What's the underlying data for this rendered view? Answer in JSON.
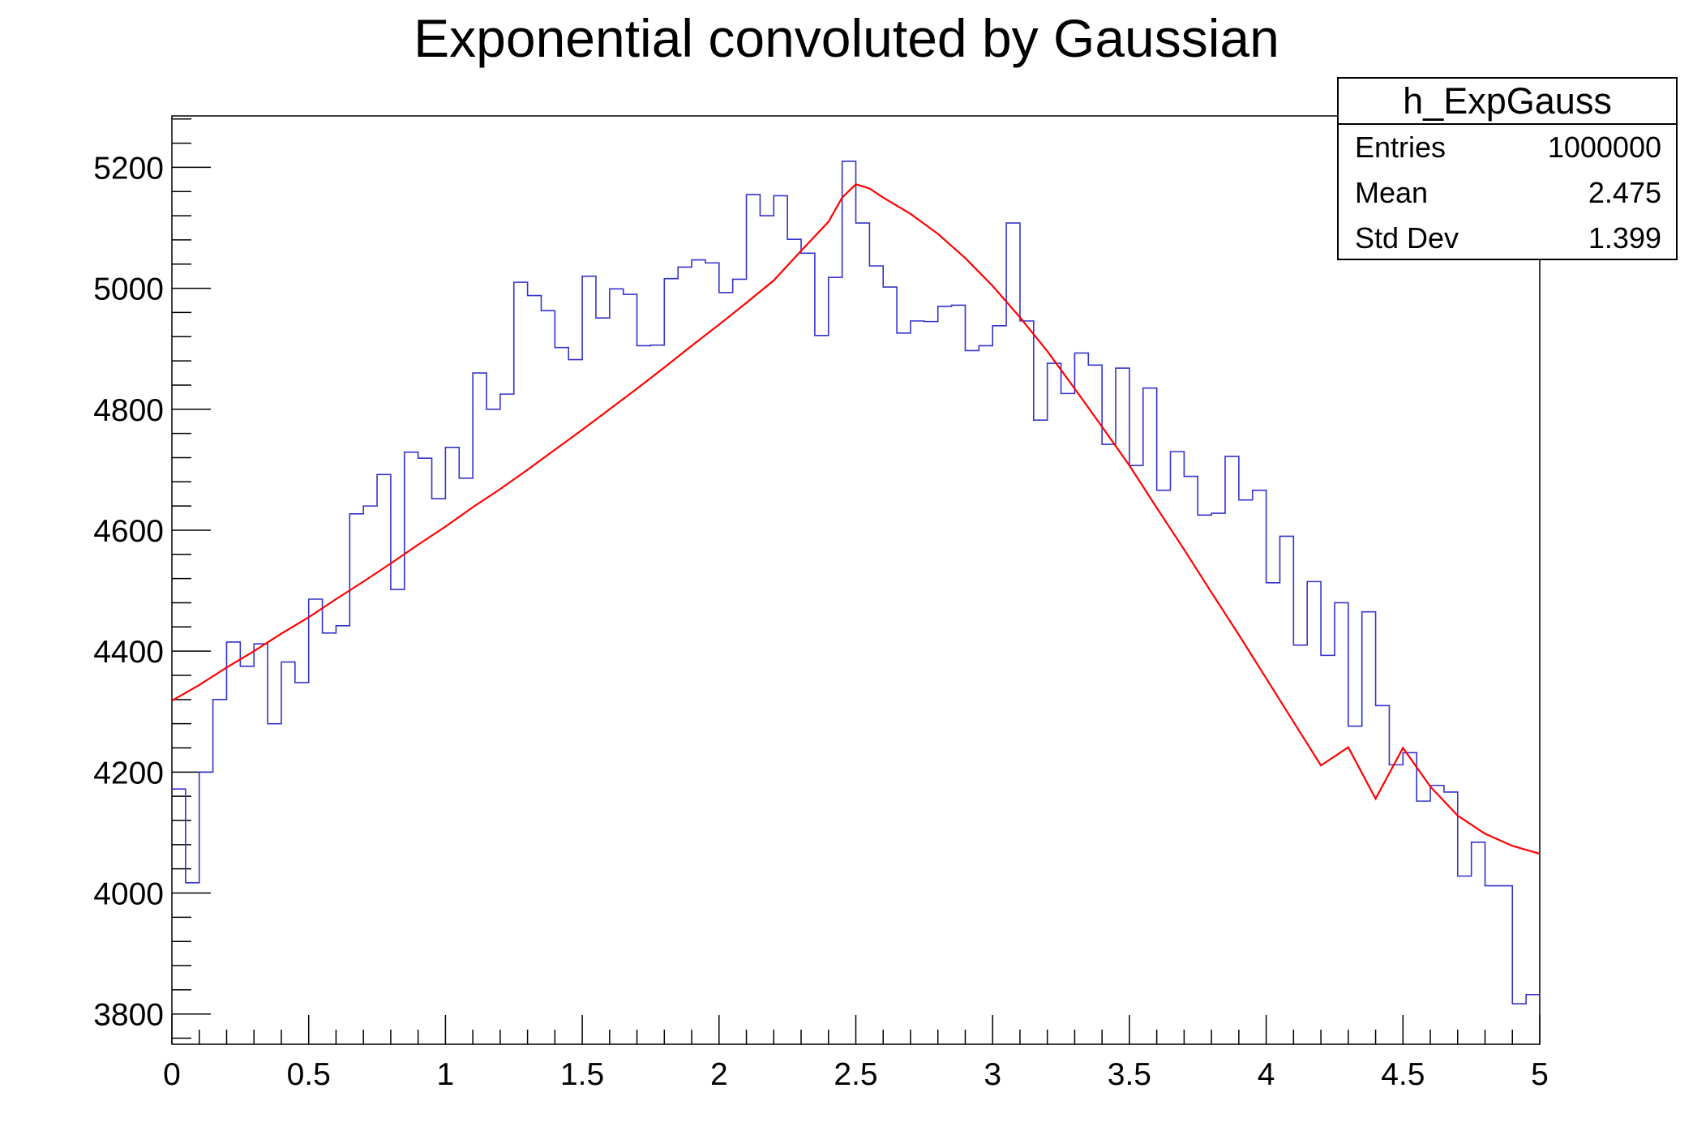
{
  "chart_data": {
    "type": "histogram",
    "title": "Exponential convoluted by Gaussian",
    "xlabel": "",
    "ylabel": "",
    "xlim": [
      0,
      5
    ],
    "ylim": [
      3750,
      5285
    ],
    "x_ticks": [
      "0",
      "0.5",
      "1",
      "1.5",
      "2",
      "2.5",
      "3",
      "3.5",
      "4",
      "4.5",
      "5"
    ],
    "y_ticks": [
      "3800",
      "4000",
      "4200",
      "4400",
      "4600",
      "4800",
      "5000",
      "5200"
    ],
    "grid": false,
    "histogram": {
      "name": "h_ExpGauss",
      "color": "#3333cc",
      "bin_edges_range": [
        0,
        5
      ],
      "n_bins": 100,
      "values": [
        4172,
        4017,
        4200,
        4320,
        4415,
        4375,
        4412,
        4280,
        4382,
        4348,
        4486,
        4430,
        4442,
        4627,
        4640,
        4692,
        4502,
        4729,
        4719,
        4652,
        4737,
        4686,
        4860,
        4800,
        4825,
        5010,
        4988,
        4963,
        4902,
        4882,
        5020,
        4951,
        4999,
        4990,
        4905,
        4906,
        5016,
        5035,
        5047,
        5042,
        4993,
        5015,
        5155,
        5120,
        5153,
        5081,
        5058,
        4922,
        5018,
        5210,
        5108,
        5037,
        5002,
        4926,
        4946,
        4945,
        4970,
        4972,
        4897,
        4905,
        4938,
        5108,
        4946,
        4782,
        4876,
        4826,
        4893,
        4873,
        4742,
        4868,
        4707,
        4835,
        4666,
        4730,
        4689,
        4625,
        4628,
        4722,
        4650,
        4666,
        4513,
        4590,
        4410,
        4515,
        4393,
        4480,
        4276,
        4465,
        4310,
        4212,
        4232,
        4152,
        4178,
        4167,
        4028,
        4084,
        4012,
        4012,
        3817,
        3832
      ]
    },
    "fit": {
      "name": "",
      "color": "#ff0000",
      "x": [
        0,
        0.1,
        0.2,
        0.3,
        0.4,
        0.5,
        0.6,
        0.7,
        0.8,
        0.9,
        1.0,
        1.1,
        1.2,
        1.3,
        1.4,
        1.5,
        1.6,
        1.7,
        1.8,
        1.9,
        2.0,
        2.1,
        2.2,
        2.3,
        2.4,
        2.45,
        2.5,
        2.55,
        2.6,
        2.7,
        2.8,
        2.9,
        3.0,
        3.1,
        3.2,
        3.3,
        3.4,
        3.5,
        3.6,
        3.7,
        3.8,
        3.9,
        4.0,
        4.1,
        4.2,
        4.3,
        4.4,
        4.5,
        4.6,
        4.7,
        4.8,
        4.9,
        5.0
      ],
      "y": [
        4318,
        4344,
        4373,
        4400,
        4429,
        4456,
        4486,
        4515,
        4545,
        4576,
        4606,
        4638,
        4668,
        4700,
        4733,
        4766,
        4800,
        4834,
        4869,
        4905,
        4940,
        4976,
        5013,
        5062,
        5110,
        5150,
        5172,
        5165,
        5150,
        5123,
        5090,
        5050,
        5004,
        4952,
        4896,
        4834,
        4771,
        4707,
        4637,
        4568,
        4497,
        4427,
        4355,
        4283,
        4211,
        4241,
        4156,
        4240,
        4176,
        4128,
        4098,
        4078,
        4065
      ]
    }
  },
  "stats_box": {
    "name": "h_ExpGauss",
    "entries_label": "Entries",
    "entries_value": "1000000",
    "mean_label": "Mean",
    "mean_value": "2.475",
    "stddev_label": "Std Dev",
    "stddev_value": "1.399"
  }
}
